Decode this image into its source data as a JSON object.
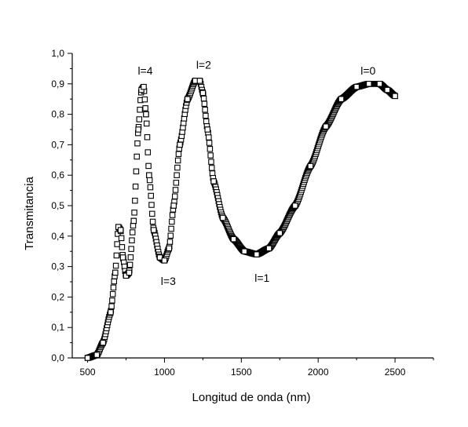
{
  "chart_data": {
    "type": "scatter",
    "title": "",
    "xlabel": "Longitud de onda (nm)",
    "ylabel": "Transmitancia",
    "xlim": [
      400,
      2750
    ],
    "ylim": [
      0,
      1.0
    ],
    "xticks": [
      500,
      1000,
      1500,
      2000,
      2500
    ],
    "yticks": [
      "0,0",
      "0,1",
      "0,2",
      "0,3",
      "0,4",
      "0,5",
      "0,6",
      "0,7",
      "0,8",
      "0,9",
      "1,0"
    ],
    "grid": false,
    "legend": "none",
    "marker": "open-square",
    "series": [
      {
        "x": [
          500,
          560,
          600,
          650,
          680,
          700,
          715,
          730,
          750,
          770,
          800,
          830,
          850,
          865,
          880,
          900,
          930,
          970,
          1000,
          1030,
          1060,
          1100,
          1150,
          1200,
          1230,
          1250,
          1280,
          1320,
          1380,
          1450,
          1520,
          1600,
          1680,
          1750,
          1850,
          1950,
          2050,
          2150,
          2250,
          2330,
          2400,
          2450,
          2500
        ],
        "y": [
          0.0,
          0.01,
          0.05,
          0.15,
          0.28,
          0.43,
          0.42,
          0.33,
          0.27,
          0.28,
          0.45,
          0.75,
          0.88,
          0.89,
          0.8,
          0.6,
          0.42,
          0.33,
          0.32,
          0.36,
          0.5,
          0.7,
          0.85,
          0.91,
          0.91,
          0.87,
          0.75,
          0.58,
          0.46,
          0.39,
          0.35,
          0.34,
          0.36,
          0.41,
          0.5,
          0.63,
          0.76,
          0.85,
          0.89,
          0.9,
          0.9,
          0.88,
          0.86
        ]
      }
    ],
    "annotations": [
      {
        "text": "l=4",
        "x": 875,
        "y": 0.93
      },
      {
        "text": "l=2",
        "x": 1255,
        "y": 0.95
      },
      {
        "text": "l=0",
        "x": 2325,
        "y": 0.93
      },
      {
        "text": "l=3",
        "x": 1025,
        "y": 0.24
      },
      {
        "text": "l=1",
        "x": 1635,
        "y": 0.25
      }
    ]
  }
}
